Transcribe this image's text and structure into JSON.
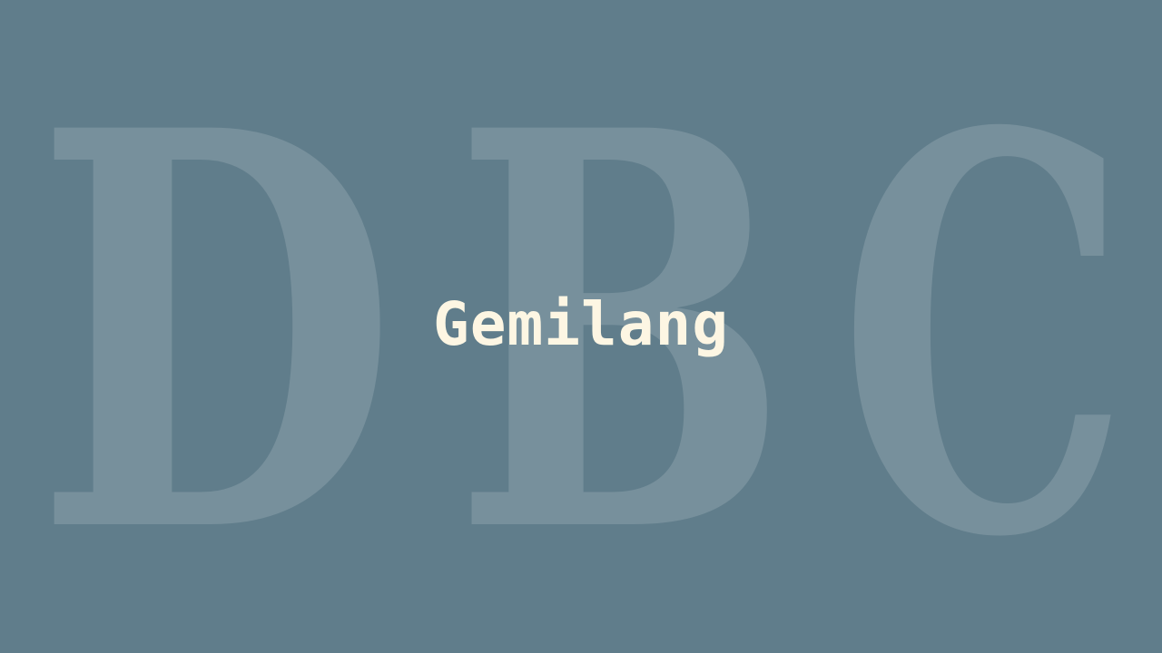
{
  "background": {
    "color": "#607d8b",
    "watermark_letters": [
      "D",
      "B",
      "C"
    ]
  },
  "title": {
    "text": "Gemilang",
    "color": "#fdf6e3"
  }
}
